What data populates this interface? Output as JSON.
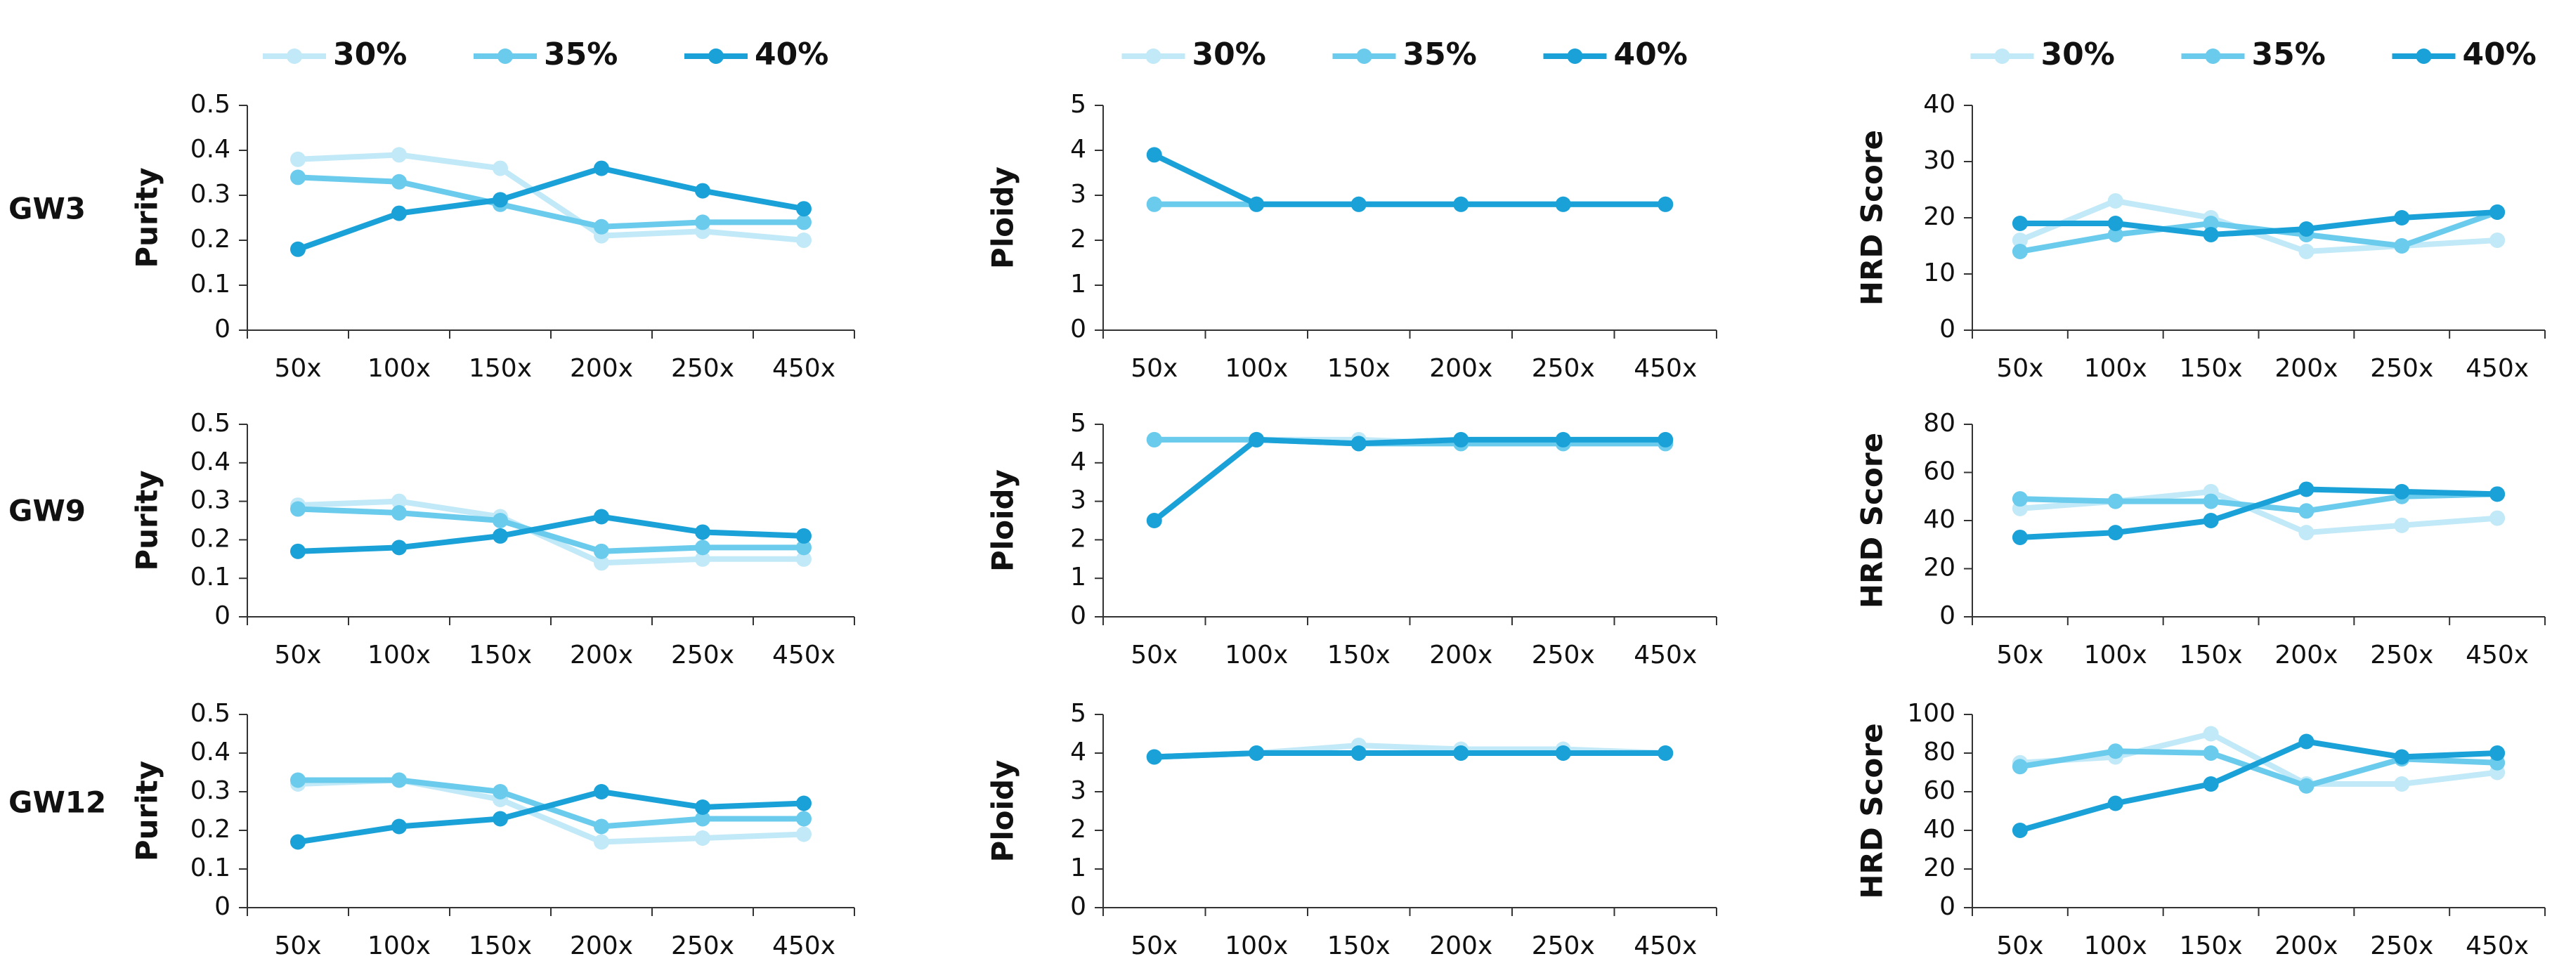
{
  "row_labels": [
    "GW3",
    "GW9",
    "GW12"
  ],
  "chart_data": [
    {
      "type": "line",
      "ylabel": "Purity",
      "legend": "top",
      "categories": [
        "50x",
        "100x",
        "150x",
        "200x",
        "250x",
        "450x"
      ],
      "ylim": [
        0,
        0.5
      ],
      "yticks": [
        0,
        0.1,
        0.2,
        0.3,
        0.4,
        0.5
      ],
      "series": [
        {
          "name": "30%",
          "color": "#c2e9f7",
          "values": [
            0.38,
            0.39,
            0.36,
            0.21,
            0.22,
            0.2
          ]
        },
        {
          "name": "35%",
          "color": "#6bcbec",
          "values": [
            0.34,
            0.33,
            0.28,
            0.23,
            0.24,
            0.24
          ]
        },
        {
          "name": "40%",
          "color": "#1aa2d8",
          "values": [
            0.18,
            0.26,
            0.29,
            0.36,
            0.31,
            0.27
          ]
        }
      ]
    },
    {
      "type": "line",
      "ylabel": "Ploidy",
      "legend": "top",
      "categories": [
        "50x",
        "100x",
        "150x",
        "200x",
        "250x",
        "450x"
      ],
      "ylim": [
        0,
        5
      ],
      "yticks": [
        0,
        1,
        2,
        3,
        4,
        5
      ],
      "series": [
        {
          "name": "30%",
          "color": "#c2e9f7",
          "values": [
            2.8,
            2.8,
            2.8,
            2.8,
            2.8,
            2.8
          ]
        },
        {
          "name": "35%",
          "color": "#6bcbec",
          "values": [
            2.8,
            2.8,
            2.8,
            2.8,
            2.8,
            2.8
          ]
        },
        {
          "name": "40%",
          "color": "#1aa2d8",
          "values": [
            3.9,
            2.8,
            2.8,
            2.8,
            2.8,
            2.8
          ]
        }
      ]
    },
    {
      "type": "line",
      "ylabel": "HRD Score",
      "legend": "top",
      "categories": [
        "50x",
        "100x",
        "150x",
        "200x",
        "250x",
        "450x"
      ],
      "ylim": [
        0,
        40
      ],
      "yticks": [
        0,
        10,
        20,
        30,
        40
      ],
      "series": [
        {
          "name": "30%",
          "color": "#c2e9f7",
          "values": [
            16,
            23,
            20,
            14,
            15,
            16
          ]
        },
        {
          "name": "35%",
          "color": "#6bcbec",
          "values": [
            14,
            17,
            19,
            17,
            15,
            21
          ]
        },
        {
          "name": "40%",
          "color": "#1aa2d8",
          "values": [
            19,
            19,
            17,
            18,
            20,
            21
          ]
        }
      ]
    },
    {
      "type": "line",
      "ylabel": "Purity",
      "categories": [
        "50x",
        "100x",
        "150x",
        "200x",
        "250x",
        "450x"
      ],
      "ylim": [
        0,
        0.5
      ],
      "yticks": [
        0,
        0.1,
        0.2,
        0.3,
        0.4,
        0.5
      ],
      "series": [
        {
          "name": "30%",
          "color": "#c2e9f7",
          "values": [
            0.29,
            0.3,
            0.26,
            0.14,
            0.15,
            0.15
          ]
        },
        {
          "name": "35%",
          "color": "#6bcbec",
          "values": [
            0.28,
            0.27,
            0.25,
            0.17,
            0.18,
            0.18
          ]
        },
        {
          "name": "40%",
          "color": "#1aa2d8",
          "values": [
            0.17,
            0.18,
            0.21,
            0.26,
            0.22,
            0.21
          ]
        }
      ]
    },
    {
      "type": "line",
      "ylabel": "Ploidy",
      "categories": [
        "50x",
        "100x",
        "150x",
        "200x",
        "250x",
        "450x"
      ],
      "ylim": [
        0,
        5
      ],
      "yticks": [
        0,
        1,
        2,
        3,
        4,
        5
      ],
      "series": [
        {
          "name": "30%",
          "color": "#c2e9f7",
          "values": [
            4.6,
            4.6,
            4.6,
            4.5,
            4.5,
            4.5
          ]
        },
        {
          "name": "35%",
          "color": "#6bcbec",
          "values": [
            4.6,
            4.6,
            4.5,
            4.5,
            4.5,
            4.5
          ]
        },
        {
          "name": "40%",
          "color": "#1aa2d8",
          "values": [
            2.5,
            4.6,
            4.5,
            4.6,
            4.6,
            4.6
          ]
        }
      ]
    },
    {
      "type": "line",
      "ylabel": "HRD Score",
      "categories": [
        "50x",
        "100x",
        "150x",
        "200x",
        "250x",
        "450x"
      ],
      "ylim": [
        0,
        80
      ],
      "yticks": [
        0,
        20,
        40,
        60,
        80
      ],
      "series": [
        {
          "name": "30%",
          "color": "#c2e9f7",
          "values": [
            45,
            48,
            52,
            35,
            38,
            41
          ]
        },
        {
          "name": "35%",
          "color": "#6bcbec",
          "values": [
            49,
            48,
            48,
            44,
            50,
            51
          ]
        },
        {
          "name": "40%",
          "color": "#1aa2d8",
          "values": [
            33,
            35,
            40,
            53,
            52,
            51
          ]
        }
      ]
    },
    {
      "type": "line",
      "ylabel": "Purity",
      "categories": [
        "50x",
        "100x",
        "150x",
        "200x",
        "250x",
        "450x"
      ],
      "ylim": [
        0,
        0.5
      ],
      "yticks": [
        0,
        0.1,
        0.2,
        0.3,
        0.4,
        0.5
      ],
      "series": [
        {
          "name": "30%",
          "color": "#c2e9f7",
          "values": [
            0.32,
            0.33,
            0.28,
            0.17,
            0.18,
            0.19
          ]
        },
        {
          "name": "35%",
          "color": "#6bcbec",
          "values": [
            0.33,
            0.33,
            0.3,
            0.21,
            0.23,
            0.23
          ]
        },
        {
          "name": "40%",
          "color": "#1aa2d8",
          "values": [
            0.17,
            0.21,
            0.23,
            0.3,
            0.26,
            0.27
          ]
        }
      ]
    },
    {
      "type": "line",
      "ylabel": "Ploidy",
      "categories": [
        "50x",
        "100x",
        "150x",
        "200x",
        "250x",
        "450x"
      ],
      "ylim": [
        0,
        5
      ],
      "yticks": [
        0,
        1,
        2,
        3,
        4,
        5
      ],
      "series": [
        {
          "name": "30%",
          "color": "#c2e9f7",
          "values": [
            3.9,
            4.0,
            4.2,
            4.1,
            4.1,
            4.0
          ]
        },
        {
          "name": "35%",
          "color": "#6bcbec",
          "values": [
            3.9,
            4.0,
            4.0,
            4.0,
            4.0,
            4.0
          ]
        },
        {
          "name": "40%",
          "color": "#1aa2d8",
          "values": [
            3.9,
            4.0,
            4.0,
            4.0,
            4.0,
            4.0
          ]
        }
      ]
    },
    {
      "type": "line",
      "ylabel": "HRD Score",
      "categories": [
        "50x",
        "100x",
        "150x",
        "200x",
        "250x",
        "450x"
      ],
      "ylim": [
        0,
        100
      ],
      "yticks": [
        0,
        20,
        40,
        60,
        80,
        100
      ],
      "series": [
        {
          "name": "30%",
          "color": "#c2e9f7",
          "values": [
            75,
            78,
            90,
            64,
            64,
            70
          ]
        },
        {
          "name": "35%",
          "color": "#6bcbec",
          "values": [
            73,
            81,
            80,
            63,
            77,
            75
          ]
        },
        {
          "name": "40%",
          "color": "#1aa2d8",
          "values": [
            40,
            54,
            64,
            86,
            78,
            80
          ]
        }
      ]
    }
  ]
}
